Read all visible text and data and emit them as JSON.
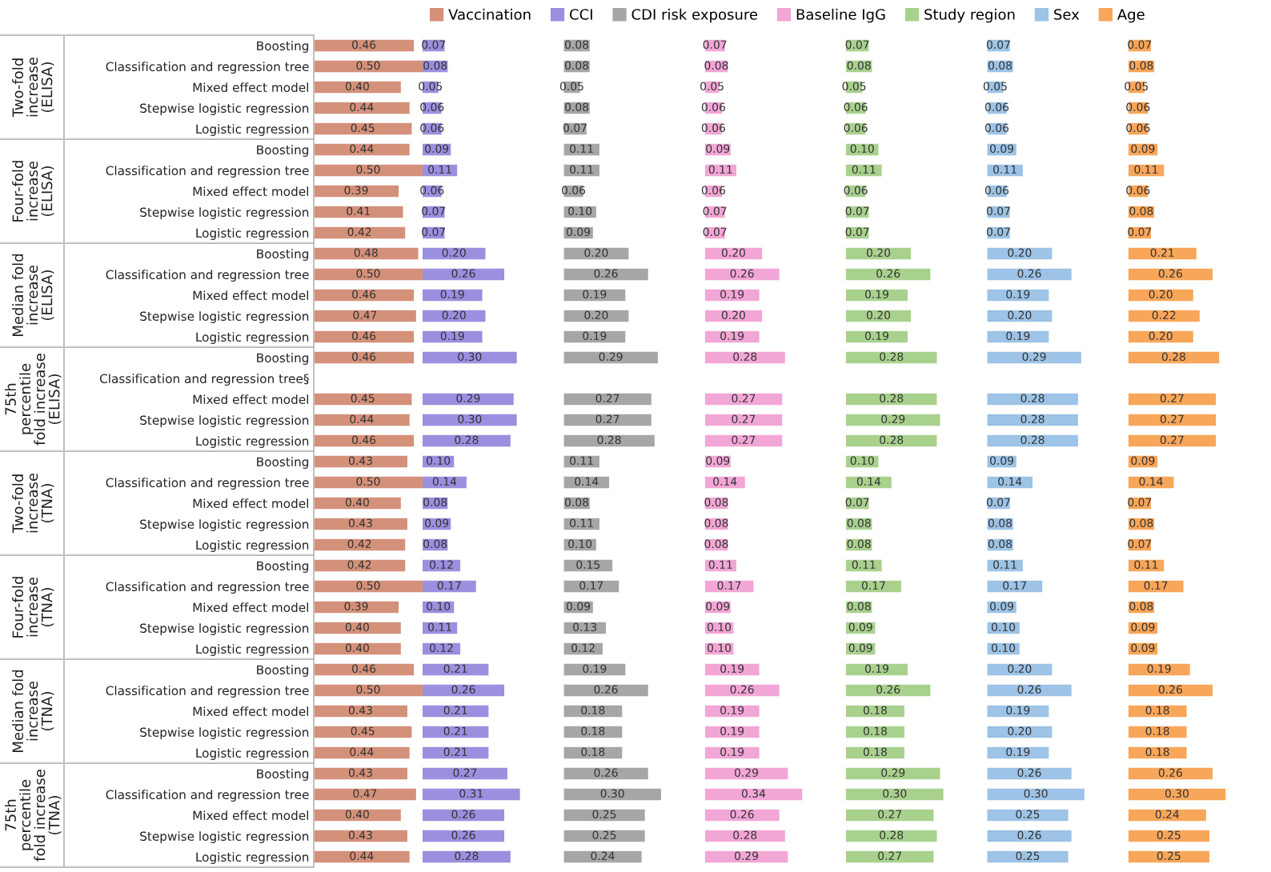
{
  "chart_data": [
    {
      "type": "bar",
      "orientation": "horizontal",
      "legend": "top",
      "categories": [
        "Boosting",
        "Classification and regression tree",
        "Mixed effect model",
        "Stepwise logistic regression",
        "Logistic regression",
        "Boosting",
        "Classification and regression tree",
        "Mixed effect model",
        "Stepwise logistic regression",
        "Logistic regression",
        "Boosting",
        "Classification and regression tree",
        "Mixed effect model",
        "Stepwise logistic regression",
        "Logistic regression",
        "Boosting",
        "Classification and regression tree§",
        "Mixed effect model",
        "Stepwise logistic regression",
        "Logistic regression",
        "Boosting",
        "Classification and regression tree",
        "Mixed effect model",
        "Stepwise logistic regression",
        "Logistic regression",
        "Boosting",
        "Classification and regression tree",
        "Mixed effect model",
        "Stepwise logistic regression",
        "Logistic regression",
        "Boosting",
        "Classification and regression tree",
        "Mixed effect model",
        "Stepwise logistic regression",
        "Logistic regression",
        "Boosting",
        "Classification and regression tree",
        "Mixed effect model",
        "Stepwise logistic regression",
        "Logistic regression"
      ],
      "annotations": [
        "Two-fold increase (ELISA)",
        "Four-fold increase (ELISA)",
        "Median fold increase (ELISA)",
        "75th percentile fold increase (ELISA)",
        "Two-fold increase (TNA)",
        "Four-fold increase (TNA)",
        "Median fold increase (TNA)",
        "75th percentile fold increase (TNA)"
      ],
      "series": [
        {
          "name": "Vaccination",
          "color": "#d4917a",
          "values": [
            0.46,
            0.5,
            0.4,
            0.44,
            0.45,
            0.44,
            0.5,
            0.39,
            0.41,
            0.42,
            0.48,
            0.5,
            0.46,
            0.47,
            0.46,
            0.46,
            null,
            0.45,
            0.44,
            0.46,
            0.43,
            0.5,
            0.4,
            0.43,
            0.42,
            0.42,
            0.5,
            0.39,
            0.4,
            0.4,
            0.46,
            0.5,
            0.43,
            0.45,
            0.44,
            0.43,
            0.47,
            0.4,
            0.43,
            0.44
          ],
          "value_labels": [
            "0.46",
            "0.50",
            "0.40",
            "0.44",
            "0.45",
            "0.44",
            "0.50",
            "0.39",
            "0.41",
            "0.42",
            "0.48",
            "0.50",
            "0.46",
            "0.47",
            "0.46",
            "0.46",
            null,
            "0.45",
            "0.44",
            "0.46",
            "0.43",
            "0.50",
            "0.40",
            "0.43",
            "0.42",
            "0.42",
            "0.50",
            "0.39",
            "0.40",
            "0.40",
            "0.46",
            "0.50",
            "0.43",
            "0.45",
            "0.44",
            "0.43",
            "0.47",
            "0.40",
            "0.43",
            "0.44"
          ]
        }
      ]
    },
    {
      "type": "bar",
      "orientation": "horizontal",
      "legend": "top",
      "categories": [
        null,
        null,
        null,
        null,
        null,
        null,
        null,
        null,
        null,
        null,
        null,
        null,
        null,
        null,
        null,
        null,
        null,
        null,
        null,
        null,
        null,
        null,
        null,
        null,
        null,
        null,
        null,
        null,
        null,
        null,
        null,
        null,
        null,
        null,
        null,
        null,
        null,
        null,
        null,
        null
      ],
      "series": [
        {
          "name": "CCI",
          "color": "#9b8fdf",
          "values": [
            0.07,
            0.08,
            0.05,
            0.06,
            0.06,
            0.09,
            0.11,
            0.06,
            0.07,
            0.07,
            0.2,
            0.26,
            0.19,
            0.2,
            0.19,
            0.3,
            null,
            0.29,
            0.3,
            0.28,
            0.1,
            0.14,
            0.08,
            0.09,
            0.08,
            0.12,
            0.17,
            0.1,
            0.11,
            0.12,
            0.21,
            0.26,
            0.21,
            0.21,
            0.21,
            0.27,
            0.31,
            0.26,
            0.26,
            0.28
          ],
          "value_labels": [
            "0.07",
            "0.08",
            "0.05",
            "0.06",
            "0.06",
            "0.09",
            "0.11",
            "0.06",
            "0.07",
            "0.07",
            "0.20",
            "0.26",
            "0.19",
            "0.20",
            "0.19",
            "0.30",
            null,
            "0.29",
            "0.30",
            "0.28",
            "0.10",
            "0.14",
            "0.08",
            "0.09",
            "0.08",
            "0.12",
            "0.17",
            "0.10",
            "0.11",
            "0.12",
            "0.21",
            "0.26",
            "0.21",
            "0.21",
            "0.21",
            "0.27",
            "0.31",
            "0.26",
            "0.26",
            "0.28"
          ]
        }
      ]
    },
    {
      "type": "bar",
      "orientation": "horizontal",
      "legend": "top",
      "categories": [
        null,
        null,
        null,
        null,
        null,
        null,
        null,
        null,
        null,
        null,
        null,
        null,
        null,
        null,
        null,
        null,
        null,
        null,
        null,
        null,
        null,
        null,
        null,
        null,
        null,
        null,
        null,
        null,
        null,
        null,
        null,
        null,
        null,
        null,
        null,
        null,
        null,
        null,
        null,
        null
      ],
      "series": [
        {
          "name": "CDI risk exposure",
          "color": "#a6a6a6",
          "values": [
            0.08,
            0.08,
            0.05,
            0.08,
            0.07,
            0.11,
            0.11,
            0.06,
            0.1,
            0.09,
            0.2,
            0.26,
            0.19,
            0.2,
            0.19,
            0.29,
            null,
            0.27,
            0.27,
            0.28,
            0.11,
            0.14,
            0.08,
            0.11,
            0.1,
            0.15,
            0.17,
            0.09,
            0.13,
            0.12,
            0.19,
            0.26,
            0.18,
            0.18,
            0.18,
            0.26,
            0.3,
            0.25,
            0.25,
            0.24
          ],
          "value_labels": [
            "0.08",
            "0.08",
            "0.05",
            "0.08",
            "0.07",
            "0.11",
            "0.11",
            "0.06",
            "0.10",
            "0.09",
            "0.20",
            "0.26",
            "0.19",
            "0.20",
            "0.19",
            "0.29",
            null,
            "0.27",
            "0.27",
            "0.28",
            "0.11",
            "0.14",
            "0.08",
            "0.11",
            "0.10",
            "0.15",
            "0.17",
            "0.09",
            "0.13",
            "0.12",
            "0.19",
            "0.26",
            "0.18",
            "0.18",
            "0.18",
            "0.26",
            "0.30",
            "0.25",
            "0.25",
            "0.24"
          ]
        }
      ]
    },
    {
      "type": "bar",
      "orientation": "horizontal",
      "legend": "top",
      "categories": [
        null,
        null,
        null,
        null,
        null,
        null,
        null,
        null,
        null,
        null,
        null,
        null,
        null,
        null,
        null,
        null,
        null,
        null,
        null,
        null,
        null,
        null,
        null,
        null,
        null,
        null,
        null,
        null,
        null,
        null,
        null,
        null,
        null,
        null,
        null,
        null,
        null,
        null,
        null,
        null
      ],
      "series": [
        {
          "name": "Baseline IgG",
          "color": "#f2a6d6",
          "values": [
            0.07,
            0.08,
            0.05,
            0.06,
            0.06,
            0.09,
            0.11,
            0.06,
            0.07,
            0.07,
            0.2,
            0.26,
            0.19,
            0.2,
            0.19,
            0.28,
            null,
            0.27,
            0.27,
            0.27,
            0.09,
            0.14,
            0.08,
            0.08,
            0.08,
            0.11,
            0.17,
            0.09,
            0.1,
            0.1,
            0.19,
            0.26,
            0.19,
            0.19,
            0.19,
            0.29,
            0.34,
            0.26,
            0.28,
            0.29
          ],
          "value_labels": [
            "0.07",
            "0.08",
            "0.05",
            "0.06",
            "0.06",
            "0.09",
            "0.11",
            "0.06",
            "0.07",
            "0.07",
            "0.20",
            "0.26",
            "0.19",
            "0.20",
            "0.19",
            "0.28",
            null,
            "0.27",
            "0.27",
            "0.27",
            "0.09",
            "0.14",
            "0.08",
            "0.08",
            "0.08",
            "0.11",
            "0.17",
            "0.09",
            "0.10",
            "0.10",
            "0.19",
            "0.26",
            "0.19",
            "0.19",
            "0.19",
            "0.29",
            "0.34",
            "0.26",
            "0.28",
            "0.29"
          ]
        }
      ]
    },
    {
      "type": "bar",
      "orientation": "horizontal",
      "legend": "top",
      "categories": [
        null,
        null,
        null,
        null,
        null,
        null,
        null,
        null,
        null,
        null,
        null,
        null,
        null,
        null,
        null,
        null,
        null,
        null,
        null,
        null,
        null,
        null,
        null,
        null,
        null,
        null,
        null,
        null,
        null,
        null,
        null,
        null,
        null,
        null,
        null,
        null,
        null,
        null,
        null,
        null
      ],
      "series": [
        {
          "name": "Study region",
          "color": "#a9d18e",
          "values": [
            0.07,
            0.08,
            0.05,
            0.06,
            0.06,
            0.1,
            0.11,
            0.06,
            0.07,
            0.07,
            0.2,
            0.26,
            0.19,
            0.2,
            0.19,
            0.28,
            null,
            0.28,
            0.29,
            0.28,
            0.1,
            0.14,
            0.07,
            0.08,
            0.08,
            0.11,
            0.17,
            0.08,
            0.09,
            0.09,
            0.19,
            0.26,
            0.18,
            0.18,
            0.18,
            0.29,
            0.3,
            0.27,
            0.28,
            0.27
          ],
          "value_labels": [
            "0.07",
            "0.08",
            "0.05",
            "0.06",
            "0.06",
            "0.10",
            "0.11",
            "0.06",
            "0.07",
            "0.07",
            "0.20",
            "0.26",
            "0.19",
            "0.20",
            "0.19",
            "0.28",
            null,
            "0.28",
            "0.29",
            "0.28",
            "0.10",
            "0.14",
            "0.07",
            "0.08",
            "0.08",
            "0.11",
            "0.17",
            "0.08",
            "0.09",
            "0.09",
            "0.19",
            "0.26",
            "0.18",
            "0.18",
            "0.18",
            "0.29",
            "0.30",
            "0.27",
            "0.28",
            "0.27"
          ]
        }
      ]
    },
    {
      "type": "bar",
      "orientation": "horizontal",
      "legend": "top",
      "categories": [
        null,
        null,
        null,
        null,
        null,
        null,
        null,
        null,
        null,
        null,
        null,
        null,
        null,
        null,
        null,
        null,
        null,
        null,
        null,
        null,
        null,
        null,
        null,
        null,
        null,
        null,
        null,
        null,
        null,
        null,
        null,
        null,
        null,
        null,
        null,
        null,
        null,
        null,
        null,
        null
      ],
      "series": [
        {
          "name": "Sex",
          "color": "#9dc3e6",
          "values": [
            0.07,
            0.08,
            0.05,
            0.06,
            0.06,
            0.09,
            0.11,
            0.06,
            0.07,
            0.07,
            0.2,
            0.26,
            0.19,
            0.2,
            0.19,
            0.29,
            null,
            0.28,
            0.28,
            0.28,
            0.09,
            0.14,
            0.07,
            0.08,
            0.08,
            0.11,
            0.17,
            0.09,
            0.1,
            0.1,
            0.2,
            0.26,
            0.19,
            0.2,
            0.19,
            0.26,
            0.3,
            0.25,
            0.26,
            0.25
          ],
          "value_labels": [
            "0.07",
            "0.08",
            "0.05",
            "0.06",
            "0.06",
            "0.09",
            "0.11",
            "0.06",
            "0.07",
            "0.07",
            "0.20",
            "0.26",
            "0.19",
            "0.20",
            "0.19",
            "0.29",
            null,
            "0.28",
            "0.28",
            "0.28",
            "0.09",
            "0.14",
            "0.07",
            "0.08",
            "0.08",
            "0.11",
            "0.17",
            "0.09",
            "0.10",
            "0.10",
            "0.20",
            "0.26",
            "0.19",
            "0.20",
            "0.19",
            "0.26",
            "0.30",
            "0.25",
            "0.26",
            "0.25"
          ]
        }
      ]
    },
    {
      "type": "bar",
      "orientation": "horizontal",
      "legend": "top",
      "categories": [
        null,
        null,
        null,
        null,
        null,
        null,
        null,
        null,
        null,
        null,
        null,
        null,
        null,
        null,
        null,
        null,
        null,
        null,
        null,
        null,
        null,
        null,
        null,
        null,
        null,
        null,
        null,
        null,
        null,
        null,
        null,
        null,
        null,
        null,
        null,
        null,
        null,
        null,
        null,
        null
      ],
      "series": [
        {
          "name": "Age",
          "color": "#f8a65a",
          "values": [
            0.07,
            0.08,
            0.05,
            0.06,
            0.06,
            0.09,
            0.11,
            0.06,
            0.08,
            0.07,
            0.21,
            0.26,
            0.2,
            0.22,
            0.2,
            0.28,
            null,
            0.27,
            0.27,
            0.27,
            0.09,
            0.14,
            0.07,
            0.08,
            0.07,
            0.11,
            0.17,
            0.08,
            0.09,
            0.09,
            0.19,
            0.26,
            0.18,
            0.18,
            0.18,
            0.26,
            0.3,
            0.24,
            0.25,
            0.25
          ],
          "value_labels": [
            "0.07",
            "0.08",
            "0.05",
            "0.06",
            "0.06",
            "0.09",
            "0.11",
            "0.06",
            "0.08",
            "0.07",
            "0.21",
            "0.26",
            "0.20",
            "0.22",
            "0.20",
            "0.28",
            null,
            "0.27",
            "0.27",
            "0.27",
            "0.09",
            "0.14",
            "0.07",
            "0.08",
            "0.07",
            "0.11",
            "0.17",
            "0.08",
            "0.09",
            "0.09",
            "0.19",
            "0.26",
            "0.18",
            "0.18",
            "0.18",
            "0.26",
            "0.30",
            "0.24",
            "0.25",
            "0.25"
          ]
        }
      ]
    }
  ]
}
